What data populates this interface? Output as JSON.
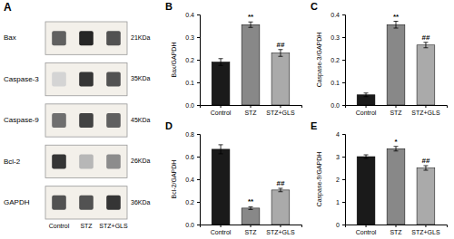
{
  "chart_data": [
    {
      "type": "heatmap",
      "title": "A",
      "rows": [
        "Bax",
        "Caspase-3",
        "Caspase-9",
        "Bcl-2",
        "GAPDH"
      ],
      "kda": [
        "21KDa",
        "35KDa",
        "45KDa",
        "26KDa",
        "36KDa"
      ],
      "categories": [
        "Control",
        "STZ",
        "STZ+GLS"
      ],
      "values": [
        [
          0.7,
          0.9,
          0.75
        ],
        [
          0.3,
          0.85,
          0.75
        ],
        [
          0.65,
          0.8,
          0.7
        ],
        [
          0.85,
          0.4,
          0.55
        ],
        [
          0.75,
          0.75,
          0.85
        ]
      ]
    },
    {
      "type": "bar",
      "title": "B",
      "ylabel": "Bax/GAPDH",
      "categories": [
        "Control",
        "STZ",
        "STZ+GLS"
      ],
      "values": [
        0.19,
        0.355,
        0.23
      ],
      "errors": [
        0.015,
        0.012,
        0.015
      ],
      "ylim": [
        0,
        0.4
      ],
      "yticks": [
        {
          "value": 0.0,
          "label": "0.0"
        },
        0.1,
        0.2,
        0.3,
        0.4
      ],
      "annotations": [
        null,
        "**",
        "##"
      ],
      "colors": [
        "#1a1a1a",
        "#888888",
        "#aaaaaa"
      ]
    },
    {
      "type": "bar",
      "title": "C",
      "ylabel": "Caspase-3/GAPDH",
      "categories": [
        "Control",
        "STZ",
        "STZ+GLS"
      ],
      "values": [
        0.045,
        0.355,
        0.265
      ],
      "errors": [
        0.008,
        0.015,
        0.012
      ],
      "ylim": [
        0,
        0.4
      ],
      "yticks": [
        {
          "value": 0.0,
          "label": "0.0"
        },
        0.1,
        0.2,
        0.3,
        0.4
      ],
      "annotations": [
        null,
        "**",
        "##"
      ],
      "colors": [
        "#1a1a1a",
        "#888888",
        "#aaaaaa"
      ]
    },
    {
      "type": "bar",
      "title": "D",
      "ylabel": "Bcl-2/GAPDH",
      "categories": [
        "Control",
        "STZ",
        "STZ+GLS"
      ],
      "values": [
        0.665,
        0.145,
        0.305
      ],
      "errors": [
        0.04,
        0.012,
        0.015
      ],
      "ylim": [
        0,
        0.8
      ],
      "yticks": [
        {
          "value": 0.0,
          "label": "0.0"
        },
        0.2,
        0.4,
        0.6,
        0.8
      ],
      "annotations": [
        null,
        "**",
        "##"
      ],
      "colors": [
        "#1a1a1a",
        "#888888",
        "#aaaaaa"
      ]
    },
    {
      "type": "bar",
      "title": "E",
      "ylabel": "Caspase-9/GAPDH",
      "categories": [
        "Control",
        "STZ",
        "STZ+GLS"
      ],
      "values": [
        3.0,
        3.35,
        2.5
      ],
      "errors": [
        0.08,
        0.1,
        0.1
      ],
      "ylim": [
        0,
        4
      ],
      "yticks": [
        0,
        1,
        2,
        3,
        4
      ],
      "annotations": [
        null,
        "*",
        "##"
      ],
      "colors": [
        "#1a1a1a",
        "#888888",
        "#aaaaaa"
      ]
    }
  ]
}
